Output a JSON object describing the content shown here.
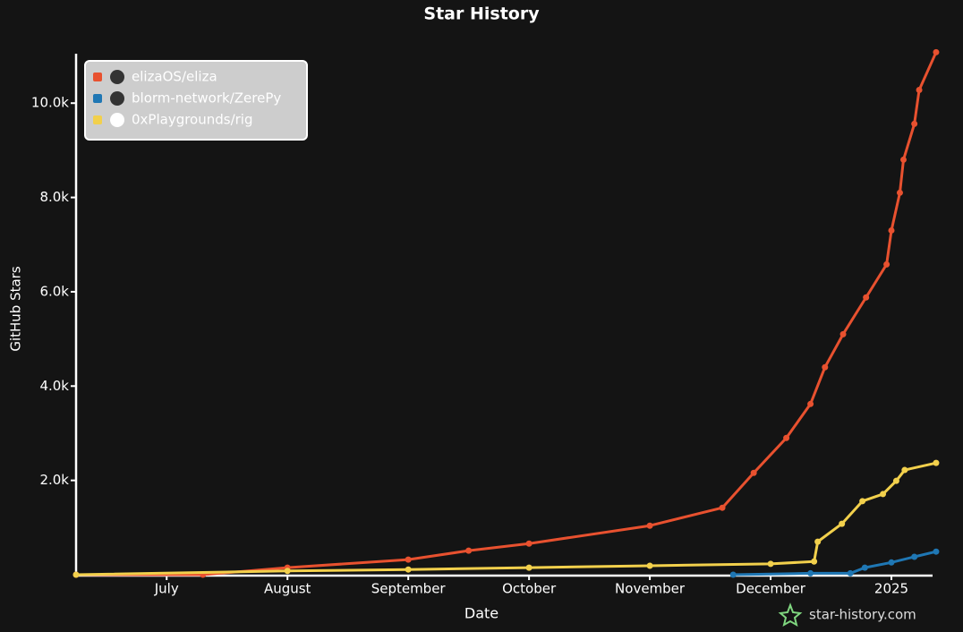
{
  "chart_data": {
    "type": "line",
    "title": "Star History",
    "x_label": "Date",
    "y_label": "GitHub Stars",
    "watermark": "star-history.com",
    "xlim": [
      0.25,
      7.4
    ],
    "ylim": [
      0,
      11200
    ],
    "xticks": [
      {
        "value": 1,
        "label": "July"
      },
      {
        "value": 2,
        "label": "August"
      },
      {
        "value": 3,
        "label": "September"
      },
      {
        "value": 4,
        "label": "October"
      },
      {
        "value": 5,
        "label": "November"
      },
      {
        "value": 6,
        "label": "December"
      },
      {
        "value": 7,
        "label": "2025"
      }
    ],
    "yticks": [
      {
        "value": 2000,
        "label": "2.0k"
      },
      {
        "value": 4000,
        "label": "4.0k"
      },
      {
        "value": 6000,
        "label": "6.0k"
      },
      {
        "value": 8000,
        "label": "8.0k"
      },
      {
        "value": 10000,
        "label": "10.0k"
      }
    ],
    "legend": "top-left",
    "series": [
      {
        "name": "elizaOS/eliza",
        "color": "#e8512f",
        "x": [
          0.25,
          1.3,
          2,
          3,
          3.5,
          4,
          5,
          5.6,
          5.86,
          6.13,
          6.33,
          6.45,
          6.6,
          6.79,
          6.96,
          7.0,
          7.07,
          7.1,
          7.19,
          7.23,
          7.37
        ],
        "values": [
          0,
          0,
          150,
          320,
          510,
          660,
          1040,
          1420,
          2160,
          2900,
          3620,
          4400,
          5100,
          5880,
          6580,
          7300,
          8100,
          8800,
          9560,
          10280,
          11080
        ]
      },
      {
        "name": "blorm-network/ZerePy",
        "color": "#1f77b4",
        "x": [
          5.69,
          6.33,
          6.66,
          6.78,
          7.0,
          7.19,
          7.37
        ],
        "values": [
          0,
          30,
          30,
          150,
          260,
          380,
          490
        ]
      },
      {
        "name": "0xPlaygrounds/rig",
        "color": "#f2d04c",
        "x": [
          0.25,
          2,
          3,
          4,
          5,
          6,
          6.36,
          6.39,
          6.59,
          6.76,
          6.93,
          7.04,
          7.11,
          7.37
        ],
        "values": [
          0,
          80,
          110,
          150,
          190,
          230,
          280,
          700,
          1080,
          1560,
          1710,
          1990,
          2220,
          2370
        ]
      }
    ]
  }
}
